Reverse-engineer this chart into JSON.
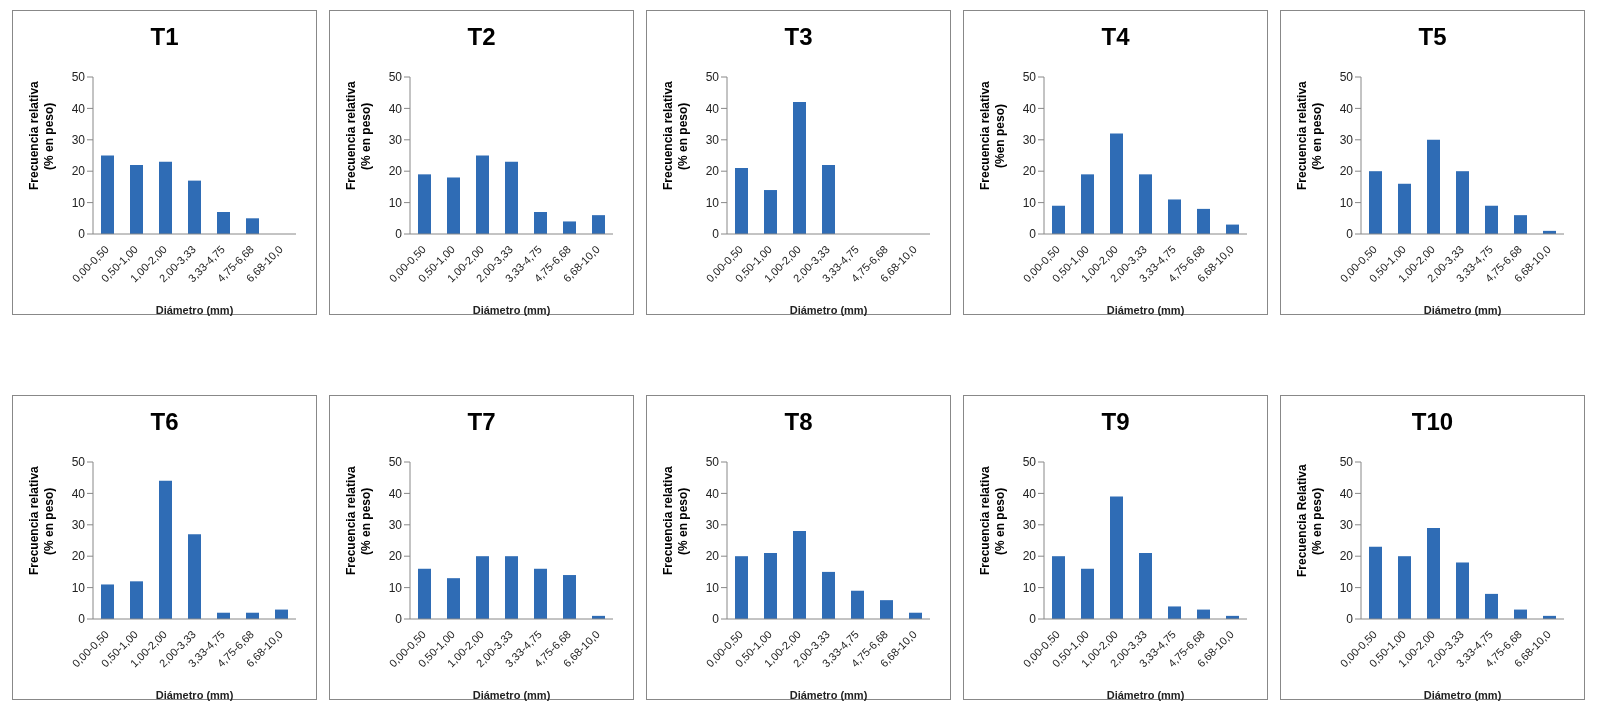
{
  "chart_data": [
    {
      "type": "bar",
      "title": "T1",
      "xlabel": "Diámetro (mm)",
      "ylabel": "Frecuencia relativa\n(% en peso)",
      "categories": [
        "0,00-0,50",
        "0,50-1,00",
        "1,00-2,00",
        "2,00-3,33",
        "3,33-4,75",
        "4,75-6,68",
        "6,68-10,0"
      ],
      "values": [
        25,
        22,
        23,
        17,
        7,
        5,
        null
      ],
      "color": "#2f6cb5",
      "ylim": [
        0,
        50
      ],
      "yticks": [
        0,
        10,
        20,
        30,
        40,
        50
      ]
    },
    {
      "type": "bar",
      "title": "T2",
      "xlabel": "Diámetro (mm)",
      "ylabel": "Frecuencia relativa\n(% en peso)",
      "categories": [
        "0,00-0,50",
        "0,50-1,00",
        "1,00-2,00",
        "2,00-3,33",
        "3,33-4,75",
        "4,75-6,68",
        "6,68-10,0"
      ],
      "values": [
        19,
        18,
        25,
        23,
        7,
        4,
        6
      ],
      "color": "#2f6cb5",
      "ylim": [
        0,
        50
      ],
      "yticks": [
        0,
        10,
        20,
        30,
        40,
        50
      ]
    },
    {
      "type": "bar",
      "title": "T3",
      "xlabel": "Diámetro (mm)",
      "ylabel": "Frecuencia relativa\n(% en peso)",
      "categories": [
        "0,00-0,50",
        "0,50-1,00",
        "1,00-2,00",
        "2,00-3,33",
        "3,33-4,75",
        "4,75-6,68",
        "6,68-10,0"
      ],
      "values": [
        21,
        14,
        42,
        22,
        null,
        null,
        null
      ],
      "color": "#2f6cb5",
      "ylim": [
        0,
        50
      ],
      "yticks": [
        0,
        10,
        20,
        30,
        40,
        50
      ]
    },
    {
      "type": "bar",
      "title": "T4",
      "xlabel": "Diámetro (mm)",
      "ylabel": "Frecuencia relativa\n(%en peso)",
      "categories": [
        "0,00-0,50",
        "0,50-1,00",
        "1,00-2,00",
        "2,00-3,33",
        "3,33-4,75",
        "4,75-6,68",
        "6,68-10,0"
      ],
      "values": [
        9,
        19,
        32,
        19,
        11,
        8,
        3
      ],
      "color": "#2f6cb5",
      "ylim": [
        0,
        50
      ],
      "yticks": [
        0,
        10,
        20,
        30,
        40,
        50
      ]
    },
    {
      "type": "bar",
      "title": "T5",
      "xlabel": "Diámetro (mm)",
      "ylabel": "Frecuencia relativa\n(% en peso)",
      "categories": [
        "0,00-0,50",
        "0,50-1,00",
        "1,00-2,00",
        "2,00-3,33",
        "3,33-4,75",
        "4,75-6,68",
        "6,68-10,0"
      ],
      "values": [
        20,
        16,
        30,
        20,
        9,
        6,
        1
      ],
      "color": "#2f6cb5",
      "ylim": [
        0,
        50
      ],
      "yticks": [
        0,
        10,
        20,
        30,
        40,
        50
      ]
    },
    {
      "type": "bar",
      "title": "T6",
      "xlabel": "Diámetro (mm)",
      "ylabel": "Frecuencia relativa\n(% en peso)",
      "categories": [
        "0,00-0,50",
        "0,50-1,00",
        "1,00-2,00",
        "2,00-3,33",
        "3,33-4,75",
        "4,75-6,68",
        "6,68-10,0"
      ],
      "values": [
        11,
        12,
        44,
        27,
        2,
        2,
        3
      ],
      "color": "#2f6cb5",
      "ylim": [
        0,
        50
      ],
      "yticks": [
        0,
        10,
        20,
        30,
        40,
        50
      ]
    },
    {
      "type": "bar",
      "title": "T7",
      "xlabel": "Diámetro (mm)",
      "ylabel": "Frecuencia relativa\n(% en peso)",
      "categories": [
        "0,00-0,50",
        "0,50-1,00",
        "1,00-2,00",
        "2,00-3,33",
        "3,33-4,75",
        "4,75-6,68",
        "6,68-10,0"
      ],
      "values": [
        16,
        13,
        20,
        20,
        16,
        14,
        1
      ],
      "color": "#2f6cb5",
      "ylim": [
        0,
        50
      ],
      "yticks": [
        0,
        10,
        20,
        30,
        40,
        50
      ]
    },
    {
      "type": "bar",
      "title": "T8",
      "xlabel": "Diámetro (mm)",
      "ylabel": "Frecuencia relativa\n(% en peso)",
      "categories": [
        "0,00-0,50",
        "0,50-1,00",
        "1,00-2,00",
        "2,00-3,33",
        "3,33-4,75",
        "4,75-6,68",
        "6,68-10,0"
      ],
      "values": [
        20,
        21,
        28,
        15,
        9,
        6,
        2
      ],
      "color": "#2f6cb5",
      "ylim": [
        0,
        50
      ],
      "yticks": [
        0,
        10,
        20,
        30,
        40,
        50
      ]
    },
    {
      "type": "bar",
      "title": "T9",
      "xlabel": "Diámetro (mm)",
      "ylabel": "Frecuencia relativa\n(% en peso)",
      "categories": [
        "0,00-0,50",
        "0,50-1,00",
        "1,00-2,00",
        "2,00-3,33",
        "3,33-4,75",
        "4,75-6,68",
        "6,68-10,0"
      ],
      "values": [
        20,
        16,
        39,
        21,
        4,
        3,
        1
      ],
      "color": "#2f6cb5",
      "ylim": [
        0,
        50
      ],
      "yticks": [
        0,
        10,
        20,
        30,
        40,
        50
      ]
    },
    {
      "type": "bar",
      "title": "T10",
      "xlabel": "Diámetro (mm)",
      "ylabel": "Frecuencia Relativa\n(% en peso)",
      "categories": [
        "0,00-0,50",
        "0,50-1,00",
        "1,00-2,00",
        "2,00-3,33",
        "3,33-4,75",
        "4,75-6,68",
        "6,68-10,0"
      ],
      "values": [
        23,
        20,
        29,
        18,
        8,
        3,
        1
      ],
      "color": "#2f6cb5",
      "ylim": [
        0,
        50
      ],
      "yticks": [
        0,
        10,
        20,
        30,
        40,
        50
      ]
    }
  ]
}
